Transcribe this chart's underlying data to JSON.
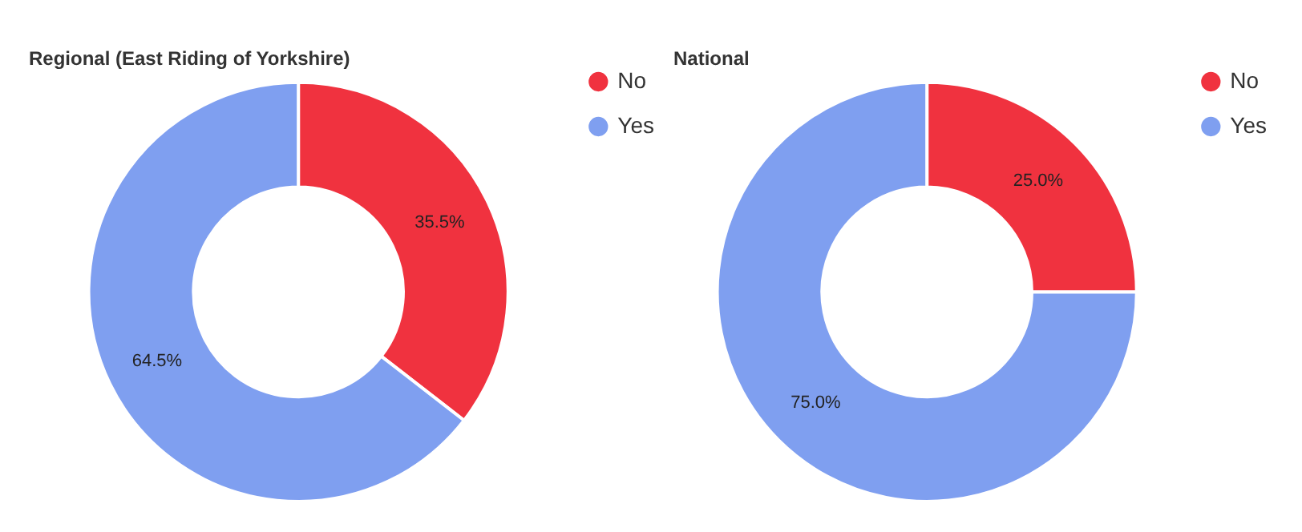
{
  "chart_data": [
    {
      "type": "donut",
      "title": "Regional (East Riding of Yorkshire)",
      "categories": [
        "No",
        "Yes"
      ],
      "values": [
        35.5,
        64.5
      ],
      "value_labels": [
        "35.5%",
        "64.5%"
      ],
      "colors": [
        "#f0323f",
        "#7f9ff0"
      ],
      "legend": "top right"
    },
    {
      "type": "donut",
      "title": "National",
      "categories": [
        "No",
        "Yes"
      ],
      "values": [
        25.0,
        75.0
      ],
      "value_labels": [
        "25.0%",
        "75.0%"
      ],
      "colors": [
        "#f0323f",
        "#7f9ff0"
      ],
      "legend": "top right"
    }
  ]
}
